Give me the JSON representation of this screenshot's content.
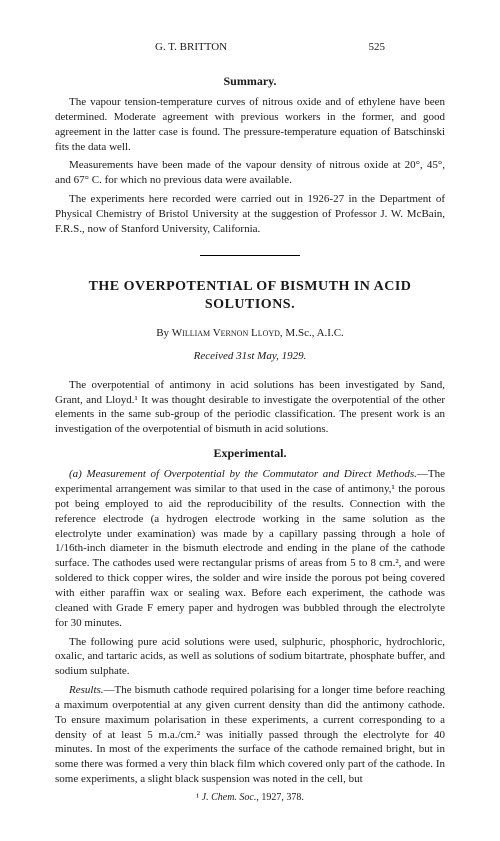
{
  "running_header": {
    "author": "G. T. BRITTON",
    "page_number": "525"
  },
  "summary": {
    "heading": "Summary.",
    "paragraphs": [
      "The vapour tension-temperature curves of nitrous oxide and of ethylene have been determined. Moderate agreement with previous workers in the former, and good agreement in the latter case is found. The pressure-temperature equation of Batschinski fits the data well.",
      "Measurements have been made of the vapour density of nitrous oxide at 20°, 45°, and 67° C. for which no previous data were available.",
      "The experiments here recorded were carried out in 1926-27 in the Department of Physical Chemistry of Bristol University at the suggestion of Professor J. W. McBain, F.R.S., now of Stanford University, California."
    ]
  },
  "paper": {
    "title": "THE OVERPOTENTIAL OF BISMUTH IN ACID SOLUTIONS.",
    "by_prefix": "By ",
    "author": "William Vernon Lloyd",
    "author_credentials": ", M.Sc., A.I.C.",
    "received": "Received 31st May, 1929.",
    "intro": "The overpotential of antimony in acid solutions has been investigated by Sand, Grant, and Lloyd.¹ It was thought desirable to investigate the overpotential of the other elements in the same sub-group of the periodic classification. The present work is an investigation of the overpotential of bismuth in acid solutions."
  },
  "experimental": {
    "heading": "Experimental.",
    "subsection_a_label": "(a) Measurement of Overpotential by the Commutator and Direct Methods.",
    "subsection_a_body": "—The experimental arrangement was similar to that used in the case of antimony,¹ the porous pot being employed to aid the reproducibility of the results. Connection with the reference electrode (a hydrogen electrode working in the same solution as the electrolyte under examination) was made by a capillary passing through a hole of 1/16th-inch diameter in the bismuth electrode and ending in the plane of the cathode surface. The cathodes used were rectangular prisms of areas from 5 to 8 cm.², and were soldered to thick copper wires, the solder and wire inside the porous pot being covered with either paraffin wax or sealing wax. Before each experiment, the cathode was cleaned with Grade F emery paper and hydrogen was bubbled through the electrolyte for 30 minutes.",
    "para_acids": "The following pure acid solutions were used, sulphuric, phosphoric, hydrochloric, oxalic, and tartaric acids, as well as solutions of sodium bitartrate, phosphate buffer, and sodium sulphate.",
    "results_label": "Results.",
    "results_body": "—The bismuth cathode required polarising for a longer time before reaching a maximum overpotential at any given current density than did the antimony cathode. To ensure maximum polarisation in these experiments, a current corresponding to a density of at least 5 m.a./cm.² was initially passed through the electrolyte for 40 minutes. In most of the experiments the surface of the cathode remained bright, but in some there was formed a very thin black film which covered only part of the cathode. In some experiments, a slight black suspension was noted in the cell, but"
  },
  "footnote": {
    "text": "¹ J. Chem. Soc., 1927, 378."
  }
}
